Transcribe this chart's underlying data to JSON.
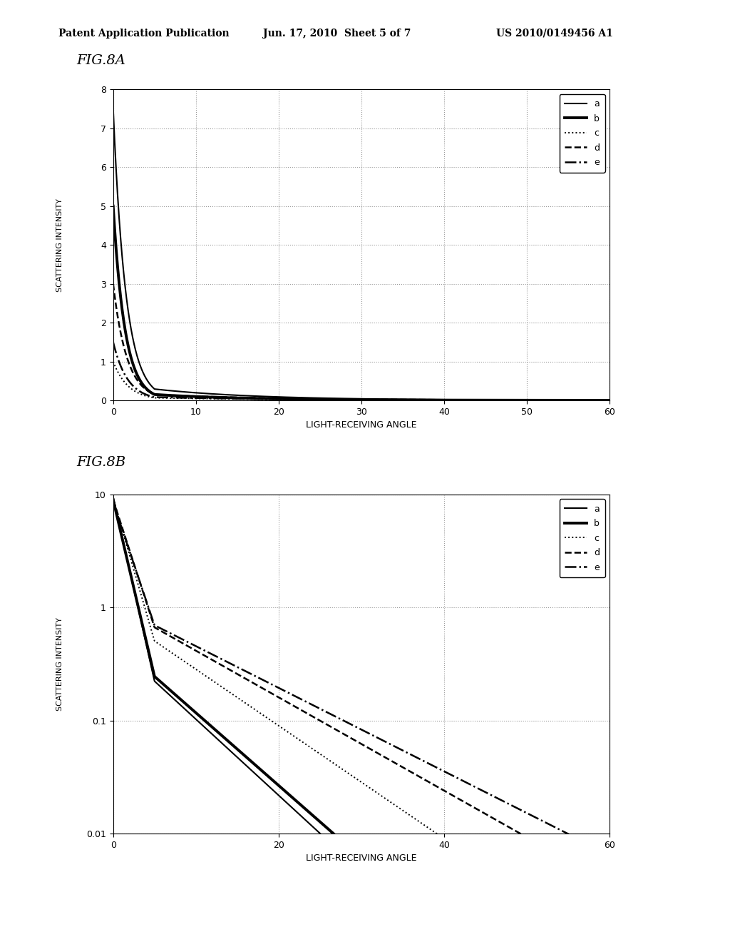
{
  "fig8a": {
    "title": "FIG.8A",
    "xlabel": "LIGHT-RECEIVING ANGLE",
    "ylabel": "SCATTERING INTENSITY",
    "xlim": [
      0,
      60
    ],
    "ylim": [
      0,
      8
    ],
    "xticks": [
      0,
      10,
      20,
      30,
      40,
      50,
      60
    ],
    "yticks": [
      0,
      1,
      2,
      3,
      4,
      5,
      6,
      7,
      8
    ]
  },
  "fig8b": {
    "title": "FIG.8B",
    "xlabel": "LIGHT-RECEIVING ANGLE",
    "ylabel": "SCATTERING INTENSITY",
    "xlim": [
      0,
      60
    ],
    "ylim_log": [
      0.01,
      10
    ],
    "xticks": [
      0,
      20,
      40,
      60
    ],
    "yticks_log": [
      0.01,
      0.1,
      1,
      10
    ],
    "ytick_labels": [
      "0.01",
      "0.1",
      "1",
      "10"
    ]
  },
  "header_left": "Patent Application Publication",
  "header_mid": "Jun. 17, 2010  Sheet 5 of 7",
  "header_right": "US 2010/0149456 A1",
  "legend_labels": [
    "a",
    "b",
    "c",
    "d",
    "e"
  ],
  "line_styles": [
    "-",
    "-",
    ":",
    "--",
    "-."
  ],
  "line_widths": [
    1.5,
    2.8,
    1.4,
    1.8,
    1.8
  ],
  "bg_color": "#ffffff"
}
